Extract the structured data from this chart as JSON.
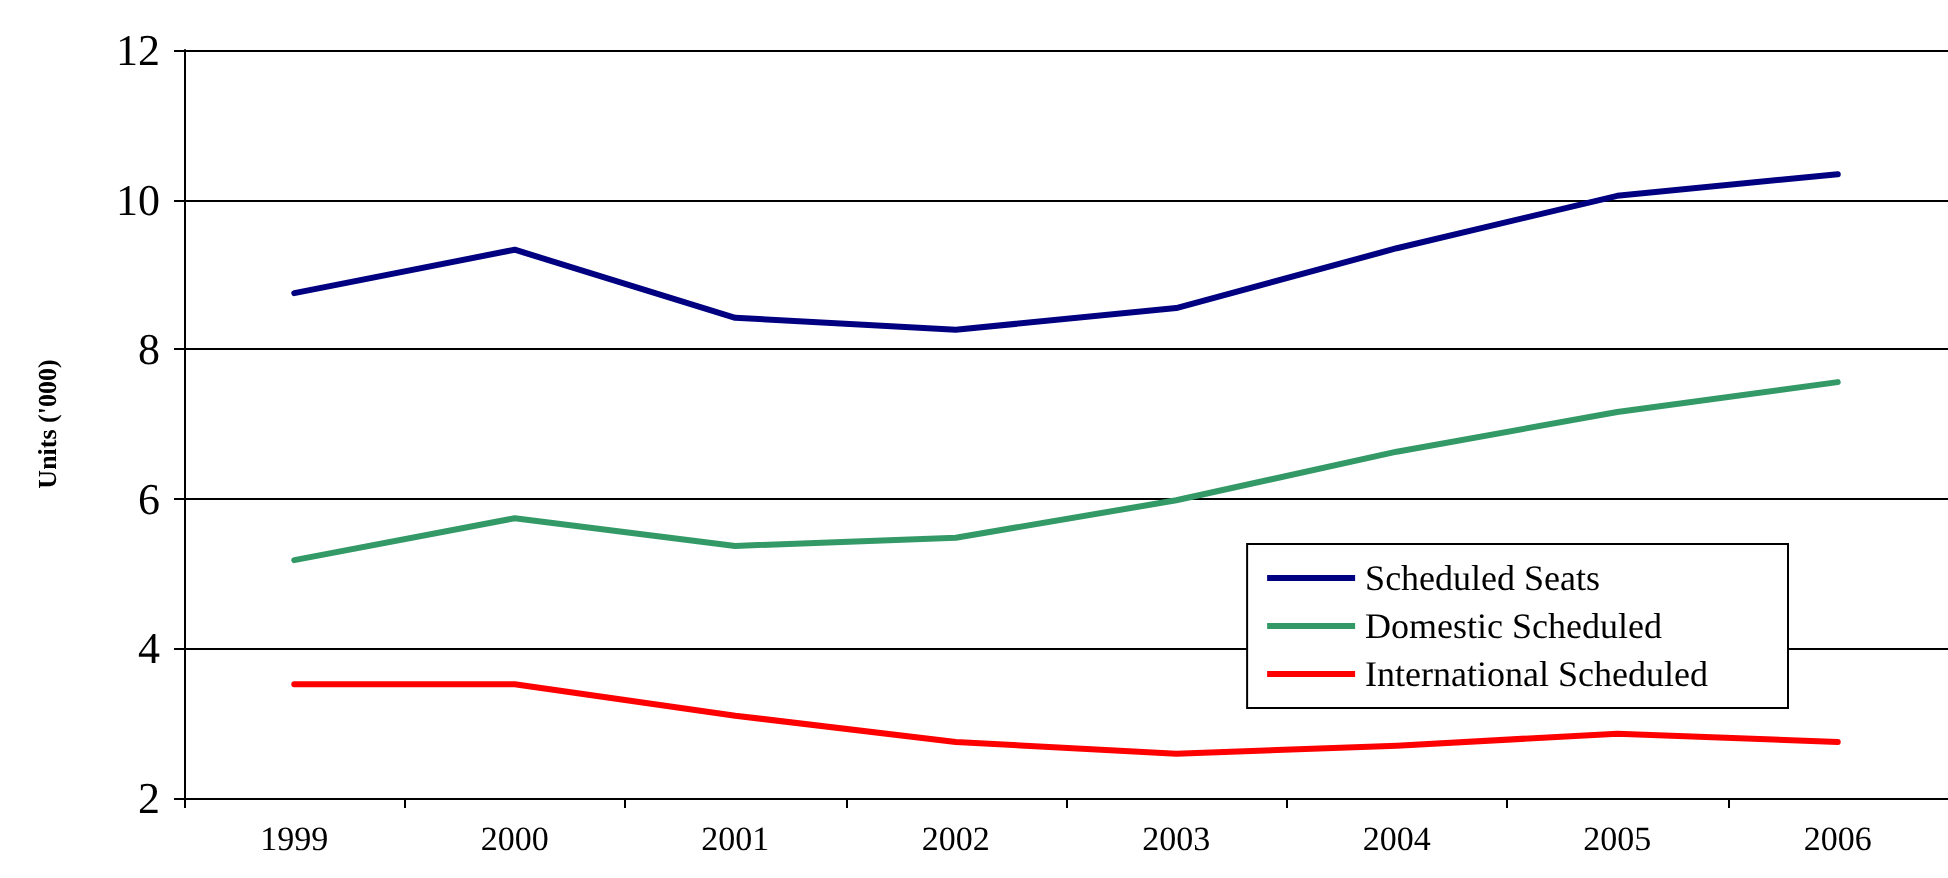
{
  "chart_data": {
    "type": "line",
    "ylabel": "Units ('000)",
    "categories": [
      "1999",
      "2000",
      "2001",
      "2002",
      "2003",
      "2004",
      "2005",
      "2006"
    ],
    "series": [
      {
        "name": "Scheduled Seats",
        "color": "#000080",
        "values": [
          8.75,
          9.33,
          8.42,
          8.26,
          8.55,
          9.35,
          10.05,
          10.34
        ]
      },
      {
        "name": "Domestic Scheduled",
        "color": "#339966",
        "values": [
          5.18,
          5.74,
          5.37,
          5.48,
          5.98,
          6.63,
          7.16,
          7.56
        ]
      },
      {
        "name": "International Scheduled",
        "color": "#ff0000",
        "values": [
          3.52,
          3.52,
          3.1,
          2.75,
          2.59,
          2.7,
          2.86,
          2.75
        ]
      }
    ],
    "ylim": [
      2,
      12
    ],
    "yticks": [
      2,
      4,
      6,
      8,
      10,
      12
    ],
    "grid": "y",
    "legend": "bottom right",
    "marker": "none",
    "line_style": "solid"
  }
}
